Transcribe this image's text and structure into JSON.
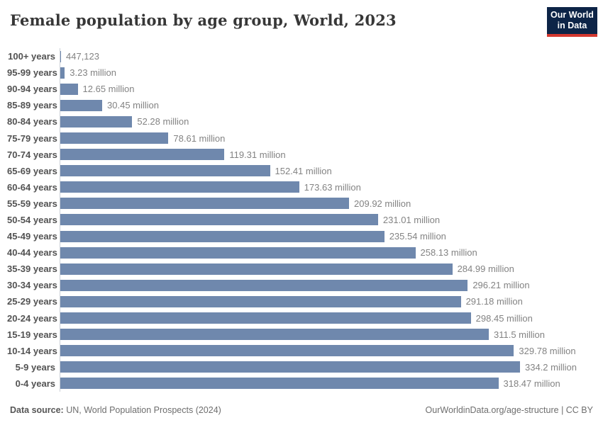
{
  "header": {
    "title": "Female population by age group, World, 2023",
    "logo": {
      "line1": "Our World",
      "line2": "in Data",
      "background_color": "#0d2447",
      "accent_color": "#d4382f"
    }
  },
  "chart_data": {
    "type": "bar",
    "orientation": "horizontal",
    "title": "Female population by age group, World, 2023",
    "unit": "female population (people)",
    "bar_color": "#6f88ad",
    "grid": false,
    "legend": "none",
    "xlim_millions": [
      0,
      334.2
    ],
    "categories": [
      "100+ years",
      "95-99 years",
      "90-94 years",
      "85-89 years",
      "80-84 years",
      "75-79 years",
      "70-74 years",
      "65-69 years",
      "60-64 years",
      "55-59 years",
      "50-54 years",
      "45-49 years",
      "40-44 years",
      "35-39 years",
      "30-34 years",
      "25-29 years",
      "20-24 years",
      "15-19 years",
      "10-14 years",
      "5-9 years",
      "0-4 years"
    ],
    "values_millions": [
      0.447123,
      3.23,
      12.65,
      30.45,
      52.28,
      78.61,
      119.31,
      152.41,
      173.63,
      209.92,
      231.01,
      235.54,
      258.13,
      284.99,
      296.21,
      291.18,
      298.45,
      311.5,
      329.78,
      334.2,
      318.47
    ],
    "value_labels": [
      "447,123",
      "3.23 million",
      "12.65 million",
      "30.45 million",
      "52.28 million",
      "78.61 million",
      "119.31 million",
      "152.41 million",
      "173.63 million",
      "209.92 million",
      "231.01 million",
      "235.54 million",
      "258.13 million",
      "284.99 million",
      "296.21 million",
      "291.18 million",
      "298.45 million",
      "311.5 million",
      "329.78 million",
      "334.2 million",
      "318.47 million"
    ]
  },
  "footer": {
    "data_source_label": "Data source:",
    "data_source_text": " UN, World Population Prospects (2024)",
    "right_text": "OurWorldinData.org/age-structure | CC BY"
  }
}
